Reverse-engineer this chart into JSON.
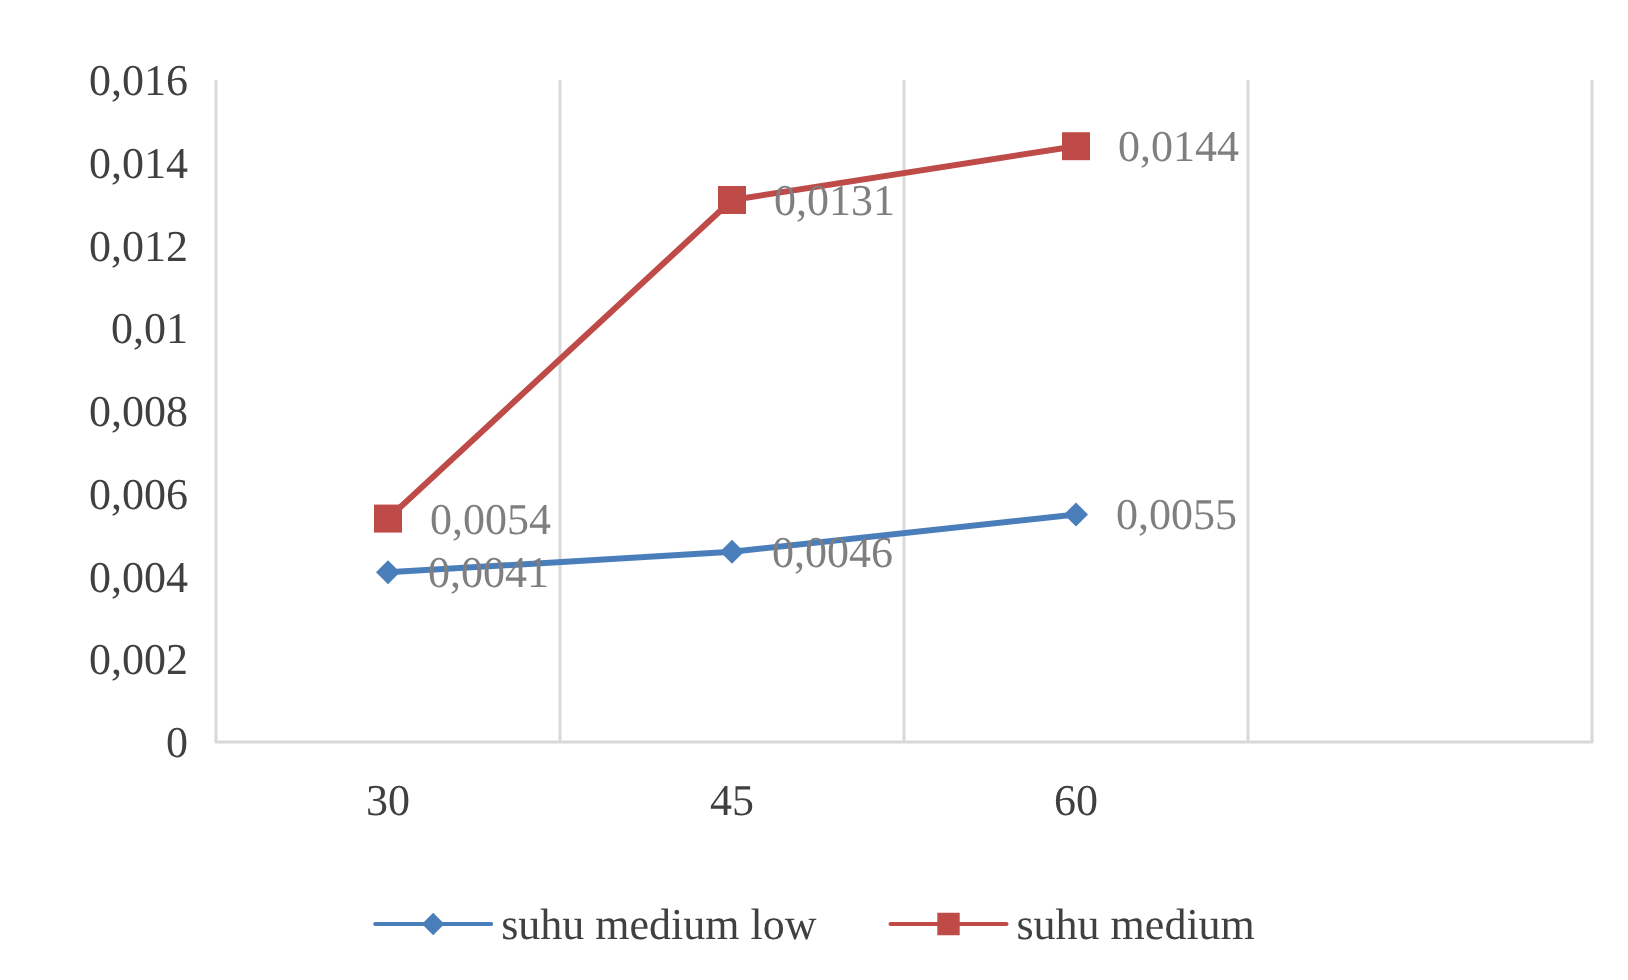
{
  "chart_data": {
    "type": "line",
    "categories": [
      "30",
      "45",
      "60",
      null
    ],
    "ylim": [
      0,
      0.016
    ],
    "yticks": [
      {
        "value": 0,
        "label": "0"
      },
      {
        "value": 0.002,
        "label": "0,002"
      },
      {
        "value": 0.004,
        "label": "0,004"
      },
      {
        "value": 0.006,
        "label": "0,006"
      },
      {
        "value": 0.008,
        "label": "0,008"
      },
      {
        "value": 0.01,
        "label": "0,01"
      },
      {
        "value": 0.012,
        "label": "0,012"
      },
      {
        "value": 0.014,
        "label": "0,014"
      },
      {
        "value": 0.016,
        "label": "0,016"
      }
    ],
    "grid": "x",
    "legend": "bottom",
    "series": [
      {
        "name": "suhu medium low",
        "color": "#4a7ebb",
        "marker": "diamond",
        "values": [
          0.0041,
          0.0046,
          0.0055,
          null
        ],
        "value_labels": [
          "0,0041",
          "0,0046",
          "0,0055",
          null
        ]
      },
      {
        "name": "suhu medium",
        "color": "#be4b48",
        "marker": "square",
        "values": [
          0.0054,
          0.0131,
          0.0144,
          null
        ],
        "value_labels": [
          "0,0054",
          "0,0131",
          "0,0144",
          null
        ]
      }
    ]
  }
}
